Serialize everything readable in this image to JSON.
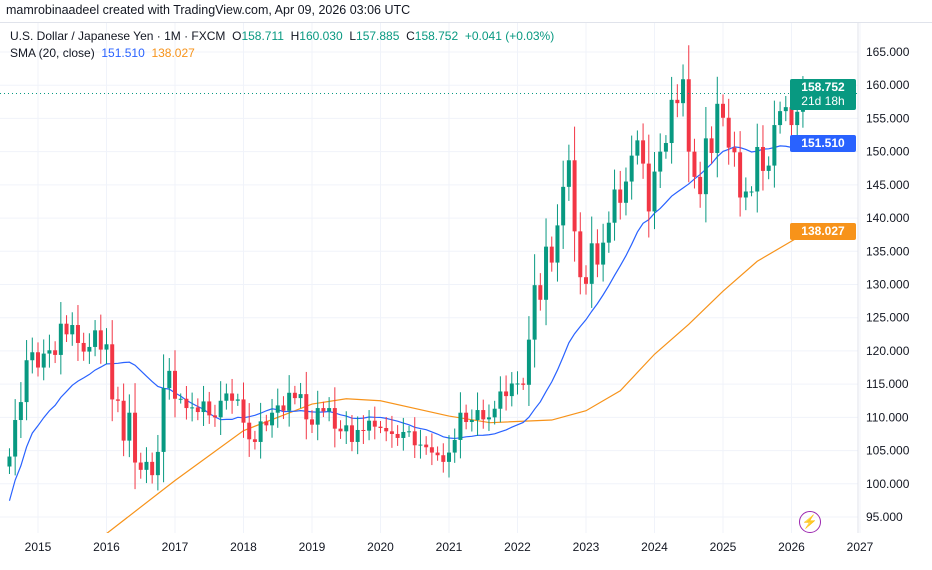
{
  "credit": "mamrobinaadeel created with TradingView.com, Apr 09, 2026 03:06 UTC",
  "legend": {
    "symbol": "U.S. Dollar / Japanese Yen · 1M · FXCM",
    "o_label": "O",
    "o": "158.711",
    "h_label": "H",
    "h": "160.030",
    "l_label": "L",
    "l": "157.885",
    "c_label": "C",
    "c": "158.752",
    "change": "+0.041 (+0.03%)",
    "sma_label": "SMA (20, close)",
    "sma1": "151.510",
    "sma2": "138.027"
  },
  "badges": {
    "price": "158.752",
    "countdown": "21d 18h",
    "sma1": "151.510",
    "sma2": "138.027"
  },
  "colors": {
    "up": "#089981",
    "down": "#f23645",
    "sma1": "#2962ff",
    "sma2": "#f7931a"
  },
  "chart_data": {
    "type": "candlestick",
    "title": "U.S. Dollar / Japanese Yen · 1M · FXCM",
    "start": "2014-08",
    "closes": [
      104.1,
      109.6,
      112.3,
      118.6,
      119.8,
      117.5,
      119.6,
      120.1,
      119.4,
      124.1,
      122.5,
      123.9,
      121.2,
      119.9,
      120.6,
      123.1,
      120.2,
      121.0,
      112.7,
      112.5,
      106.5,
      110.7,
      103.2,
      102.1,
      103.3,
      101.3,
      104.8,
      114.4,
      117.0,
      112.8,
      112.8,
      111.4,
      111.5,
      110.8,
      112.4,
      110.3,
      110.0,
      112.5,
      113.6,
      112.5,
      112.7,
      109.2,
      106.7,
      106.3,
      109.4,
      108.8,
      110.7,
      111.8,
      111.0,
      113.7,
      112.9,
      113.5,
      109.7,
      108.9,
      111.4,
      110.9,
      111.4,
      108.3,
      107.9,
      108.8,
      106.3,
      108.1,
      108.0,
      109.5,
      108.6,
      108.4,
      107.9,
      107.5,
      106.9,
      107.8,
      107.9,
      105.8,
      105.9,
      105.5,
      104.7,
      104.3,
      103.3,
      104.7,
      106.6,
      110.7,
      109.3,
      109.6,
      111.1,
      109.7,
      110.0,
      111.3,
      113.9,
      113.2,
      115.1,
      115.1,
      114.9,
      121.7,
      129.9,
      127.7,
      135.7,
      133.3,
      138.9,
      144.7,
      148.7,
      138.0,
      131.1,
      130.1,
      136.2,
      133.0,
      136.3,
      139.3,
      144.3,
      142.3,
      145.5,
      149.4,
      151.7,
      148.2,
      141.0,
      147.0,
      150.0,
      151.3,
      157.8,
      157.3,
      160.9,
      150.0,
      146.2,
      143.6,
      152.0,
      149.8,
      157.2,
      155.1,
      150.6,
      149.9,
      143.1,
      144.0,
      144.0,
      150.7,
      147.1,
      147.9,
      154.0,
      156.1,
      156.7,
      154.0,
      156.0,
      158.711,
      158.752
    ],
    "sma2_points": [
      [
        2016.0,
        92.5
      ],
      [
        2017.0,
        100.5
      ],
      [
        2018.0,
        108.0
      ],
      [
        2019.0,
        112.0
      ],
      [
        2019.5,
        112.8
      ],
      [
        2020.0,
        112.5
      ],
      [
        2021.0,
        110.2
      ],
      [
        2021.6,
        109.2
      ],
      [
        2022.5,
        109.6
      ],
      [
        2023.0,
        111.0
      ],
      [
        2023.5,
        114.0
      ],
      [
        2024.0,
        119.5
      ],
      [
        2024.5,
        124.0
      ],
      [
        2025.0,
        129.0
      ],
      [
        2025.5,
        133.5
      ],
      [
        2026.25,
        138.03
      ]
    ],
    "y_ticks": [
      "165.000",
      "160.000",
      "155.000",
      "150.000",
      "145.000",
      "140.000",
      "135.000",
      "130.000",
      "125.000",
      "120.000",
      "115.000",
      "110.000",
      "105.000",
      "100.000",
      "95.000"
    ],
    "x_ticks": [
      "2015",
      "2016",
      "2017",
      "2018",
      "2019",
      "2020",
      "2021",
      "2022",
      "2023",
      "2024",
      "2025",
      "2026",
      "2027"
    ],
    "ylim": [
      95,
      165
    ],
    "last_price": 158.752
  }
}
